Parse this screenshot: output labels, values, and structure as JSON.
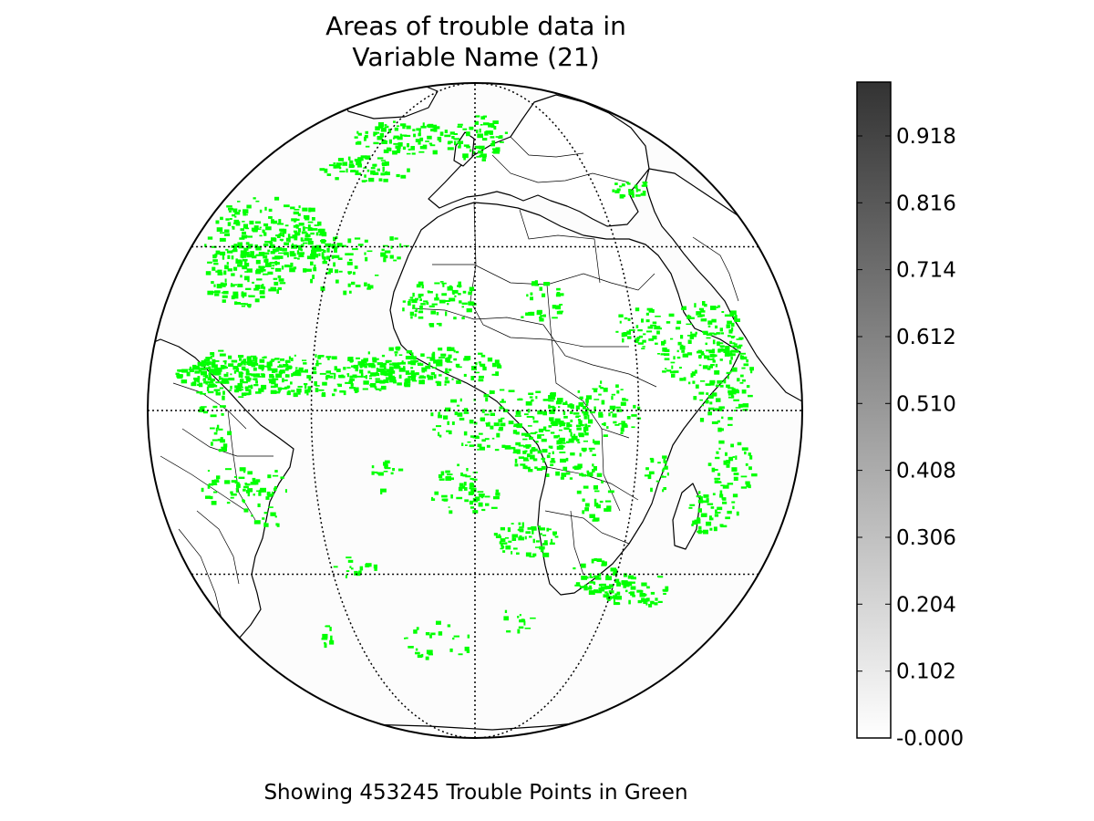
{
  "title": {
    "line1": "Areas of trouble data in",
    "line2": "Variable Name (21)"
  },
  "footer": "Showing 453245 Trouble Points in Green",
  "colors": {
    "trouble": "#00ff00",
    "ocean": "#fcfcfc",
    "coastline": "#000000",
    "colorbar_top": "#333333",
    "colorbar_bottom": "#ffffff"
  },
  "map": {
    "projection": "orthographic",
    "center_lon": 0,
    "center_lat": 0,
    "parallels_deg": [
      -30,
      0,
      30
    ],
    "meridians_deg": [
      -30,
      0,
      30
    ]
  },
  "colorbar": {
    "colormap": "greys",
    "ticks": [
      "-0.000",
      "0.102",
      "0.204",
      "0.306",
      "0.408",
      "0.510",
      "0.612",
      "0.714",
      "0.816",
      "0.918"
    ]
  }
}
